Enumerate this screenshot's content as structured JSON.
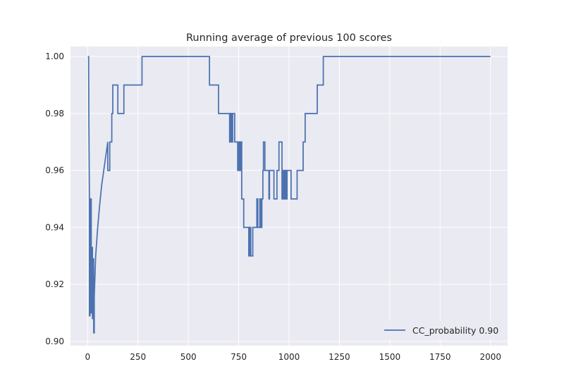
{
  "chart_data": {
    "type": "line",
    "title": "Running average of previous 100 scores",
    "xlabel": "",
    "ylabel": "",
    "xlim": [
      -85,
      2085
    ],
    "ylim": [
      0.8985,
      1.0035
    ],
    "xticks": [
      0,
      250,
      500,
      750,
      1000,
      1250,
      1500,
      1750,
      2000
    ],
    "xtick_labels": [
      "0",
      "250",
      "500",
      "750",
      "1000",
      "1250",
      "1500",
      "1750",
      "2000"
    ],
    "yticks": [
      0.9,
      0.92,
      0.94,
      0.96,
      0.98,
      1.0
    ],
    "ytick_labels": [
      "0.90",
      "0.92",
      "0.94",
      "0.96",
      "0.98",
      "1.00"
    ],
    "grid": true,
    "style": "seaborn-darkgrid",
    "legend_position": "lower-right",
    "colors": {
      "background": "#eaeaf2",
      "grid": "#ffffff",
      "line": "#4c72b0"
    },
    "series": [
      {
        "name": "CC_probability 0.90",
        "x": [
          1,
          5,
          6,
          9,
          9,
          12,
          12,
          15,
          15,
          18,
          18,
          21,
          21,
          24,
          24,
          27,
          27,
          30,
          30,
          33,
          33,
          40,
          50,
          60,
          70,
          80,
          90,
          100,
          100,
          110,
          110,
          120,
          120,
          125,
          125,
          140,
          140,
          150,
          150,
          170,
          170,
          180,
          180,
          200,
          200,
          230,
          230,
          270,
          270,
          280,
          300,
          350,
          400,
          450,
          500,
          550,
          600,
          605,
          605,
          640,
          640,
          650,
          650,
          700,
          700,
          705,
          705,
          710,
          710,
          715,
          715,
          720,
          720,
          730,
          730,
          745,
          745,
          750,
          750,
          755,
          755,
          760,
          760,
          765,
          765,
          775,
          775,
          800,
          800,
          805,
          805,
          810,
          810,
          820,
          820,
          840,
          840,
          845,
          845,
          855,
          855,
          860,
          860,
          865,
          865,
          870,
          870,
          873,
          873,
          880,
          880,
          900,
          900,
          903,
          903,
          920,
          920,
          925,
          925,
          940,
          940,
          950,
          950,
          960,
          960,
          965,
          965,
          970,
          970,
          975,
          975,
          980,
          980,
          985,
          985,
          990,
          990,
          995,
          995,
          1000,
          1000,
          1010,
          1010,
          1040,
          1040,
          1045,
          1045,
          1070,
          1070,
          1075,
          1075,
          1080,
          1080,
          1090,
          1090,
          1140,
          1140,
          1170,
          1170,
          1180,
          1300,
          1500,
          1700,
          1900,
          2000
        ],
        "y": [
          1.0,
          1.0,
          0.98,
          0.95,
          0.909,
          0.909,
          0.925,
          0.925,
          0.95,
          0.95,
          0.91,
          0.91,
          0.933,
          0.933,
          0.908,
          0.908,
          0.929,
          0.929,
          0.903,
          0.903,
          0.916,
          0.93,
          0.94,
          0.948,
          0.955,
          0.96,
          0.965,
          0.97,
          0.96,
          0.96,
          0.97,
          0.97,
          0.98,
          0.98,
          0.99,
          0.99,
          0.99,
          0.99,
          0.98,
          0.98,
          0.98,
          0.98,
          0.99,
          0.99,
          0.99,
          0.99,
          0.99,
          0.99,
          1.0,
          1.0,
          1.0,
          1.0,
          1.0,
          1.0,
          1.0,
          1.0,
          1.0,
          1.0,
          0.99,
          0.99,
          0.99,
          0.99,
          0.98,
          0.98,
          0.98,
          0.98,
          0.97,
          0.97,
          0.98,
          0.98,
          0.97,
          0.97,
          0.98,
          0.98,
          0.97,
          0.97,
          0.96,
          0.96,
          0.97,
          0.97,
          0.96,
          0.96,
          0.97,
          0.97,
          0.95,
          0.95,
          0.94,
          0.94,
          0.93,
          0.93,
          0.94,
          0.94,
          0.93,
          0.93,
          0.94,
          0.94,
          0.95,
          0.95,
          0.94,
          0.94,
          0.95,
          0.95,
          0.94,
          0.94,
          0.95,
          0.95,
          0.96,
          0.96,
          0.97,
          0.97,
          0.96,
          0.96,
          0.95,
          0.95,
          0.96,
          0.96,
          0.96,
          0.96,
          0.95,
          0.95,
          0.96,
          0.96,
          0.97,
          0.97,
          0.97,
          0.97,
          0.95,
          0.95,
          0.96,
          0.96,
          0.95,
          0.95,
          0.96,
          0.96,
          0.95,
          0.95,
          0.96,
          0.96,
          0.96,
          0.96,
          0.96,
          0.96,
          0.95,
          0.95,
          0.96,
          0.96,
          0.96,
          0.96,
          0.97,
          0.97,
          0.97,
          0.97,
          0.98,
          0.98,
          0.98,
          0.98,
          0.99,
          0.99,
          1.0,
          1.0,
          1.0,
          1.0,
          1.0,
          1.0,
          1.0
        ]
      }
    ]
  }
}
